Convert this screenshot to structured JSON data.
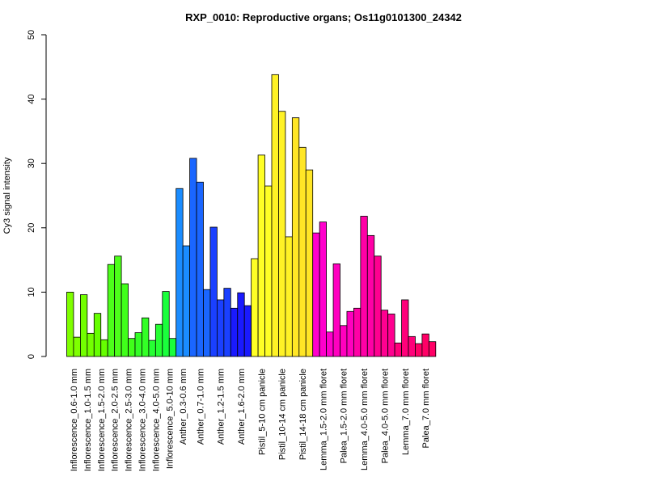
{
  "chart_data": {
    "type": "bar",
    "title": "RXP_0010: Reproductive organs; Os11g0101300_24342",
    "xlabel": "",
    "ylabel": "Cy3 signal intensity",
    "ylim": [
      0,
      50
    ],
    "yticks": [
      0,
      10,
      20,
      30,
      40,
      50
    ],
    "grid": false,
    "legend": "none",
    "groups": [
      {
        "label": "Inflorescence_0.6-1.0 mm",
        "color": "#7FFF00",
        "values": [
          10.0,
          3.0
        ]
      },
      {
        "label": "Inflorescence_1.0-1.5 mm",
        "color": "#73FF00",
        "values": [
          9.6,
          3.6
        ]
      },
      {
        "label": "Inflorescence_1.5-2.0 mm",
        "color": "#66FF00",
        "values": [
          6.7,
          2.6
        ]
      },
      {
        "label": "Inflorescence_2.0-2.5 mm",
        "color": "#4DFF1A",
        "values": [
          14.3,
          15.6
        ]
      },
      {
        "label": "Inflorescence_2.5-3.0 mm",
        "color": "#40FF1A",
        "values": [
          11.3,
          2.8
        ]
      },
      {
        "label": "Inflorescence_3.0-4.0 mm",
        "color": "#33FF26",
        "values": [
          3.7,
          6.0
        ]
      },
      {
        "label": "Inflorescence_4.0-5.0 mm",
        "color": "#26FF33",
        "values": [
          2.5,
          5.0
        ]
      },
      {
        "label": "Inflorescence_5.0-10 mm",
        "color": "#1AFF3C",
        "values": [
          10.1,
          2.8
        ]
      },
      {
        "label": "Anther_0.3-0.6 mm",
        "color": "#1A8CFF",
        "values": [
          26.1,
          17.2
        ]
      },
      {
        "label": "Anther_0.7-1.0 mm",
        "color": "#1A66FF",
        "values": [
          30.8,
          27.1,
          10.4
        ]
      },
      {
        "label": "Anther_1.2-1.5 mm",
        "color": "#1A40FF",
        "values": [
          20.1,
          8.8,
          10.6
        ]
      },
      {
        "label": "Anther_1.6-2.0 mm",
        "color": "#1A1AFF",
        "values": [
          7.5,
          9.9,
          7.9
        ]
      },
      {
        "label": "Pistil_5-10 cm panicle",
        "color": "#FFFF26",
        "values": [
          15.2,
          31.3,
          26.5
        ]
      },
      {
        "label": "Pistil_10-14 cm panicle",
        "color": "#FFF226",
        "values": [
          43.8,
          38.1,
          18.6
        ]
      },
      {
        "label": "Pistil_14-18 cm panicle",
        "color": "#FFE626",
        "values": [
          37.1,
          32.5,
          29.0
        ]
      },
      {
        "label": "Lemma_1.5-2.0 mm floret",
        "color": "#FF00CC",
        "values": [
          19.2,
          20.9,
          3.8
        ]
      },
      {
        "label": "Palea_1.5-2.0 mm floret",
        "color": "#FF00BF",
        "values": [
          14.4,
          4.8,
          7.0
        ]
      },
      {
        "label": "Lemma_4.0-5.0 mm floret",
        "color": "#FF00A6",
        "values": [
          7.5,
          21.8,
          18.8
        ]
      },
      {
        "label": "Palea_4.0-5.0 mm floret",
        "color": "#FF0090",
        "values": [
          15.6,
          7.2,
          6.6
        ]
      },
      {
        "label": "Lemma_7.0 mm floret",
        "color": "#FF007A",
        "values": [
          2.1,
          8.8,
          3.1
        ]
      },
      {
        "label": "Palea_7.0 mm floret",
        "color": "#FF0066",
        "values": [
          2.0,
          3.5,
          2.3
        ]
      }
    ]
  }
}
